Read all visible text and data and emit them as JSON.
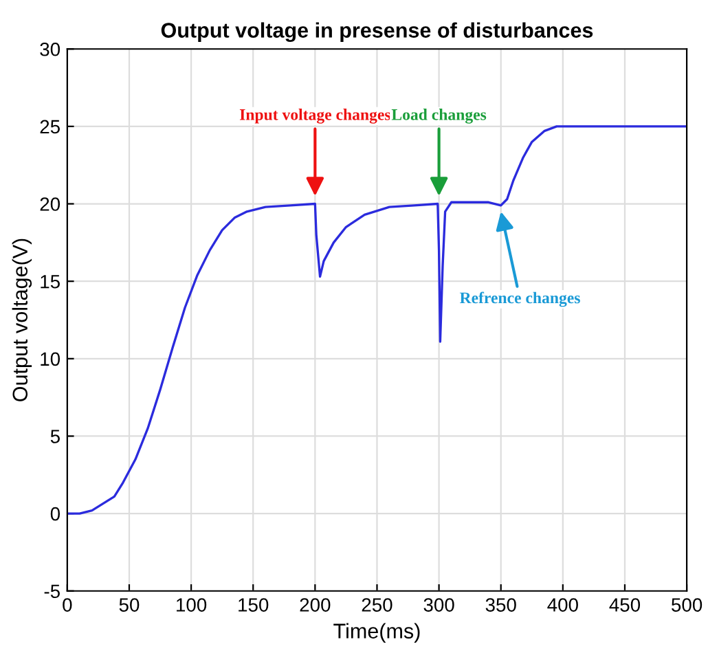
{
  "chart_data": {
    "type": "line",
    "title": "Output voltage in presense of disturbances",
    "xlabel": "Time(ms)",
    "ylabel": "Output voltage(V)",
    "x": [
      0,
      10,
      20,
      30,
      38,
      45,
      55,
      65,
      75,
      85,
      95,
      105,
      115,
      125,
      135,
      145,
      160,
      180,
      200,
      201,
      204,
      207,
      215,
      225,
      240,
      260,
      280,
      299,
      300,
      301,
      303,
      305,
      310,
      320,
      340,
      350,
      355,
      360,
      368,
      375,
      385,
      395,
      420,
      500
    ],
    "series": [
      {
        "color": "#2b2bdd",
        "values": [
          0,
          0,
          0.2,
          0.7,
          1.1,
          2,
          3.5,
          5.5,
          8,
          10.7,
          13.3,
          15.4,
          17,
          18.3,
          19.1,
          19.5,
          19.8,
          19.9,
          20,
          18,
          15.3,
          16.3,
          17.5,
          18.5,
          19.3,
          19.8,
          19.9,
          20,
          17,
          11.1,
          16,
          19.5,
          20.1,
          20.1,
          20.1,
          19.9,
          20.3,
          21.5,
          23,
          24,
          24.7,
          25,
          25,
          25
        ]
      }
    ],
    "annotations": [
      {
        "text": "Input voltage changes",
        "x": 200,
        "y": 20.5
      },
      {
        "text": "Load changes",
        "x": 300,
        "y": 20.5
      },
      {
        "text": "Refrence changes",
        "x": 350,
        "y": 19.5
      }
    ],
    "xlim": [
      0,
      500
    ],
    "ylim": [
      -5,
      30
    ],
    "xticks": [
      0,
      50,
      100,
      150,
      200,
      250,
      300,
      350,
      400,
      450,
      500
    ],
    "yticks": [
      -5,
      0,
      5,
      10,
      15,
      20,
      25,
      30
    ],
    "grid": true,
    "line_style": "solid",
    "marker": "none"
  }
}
